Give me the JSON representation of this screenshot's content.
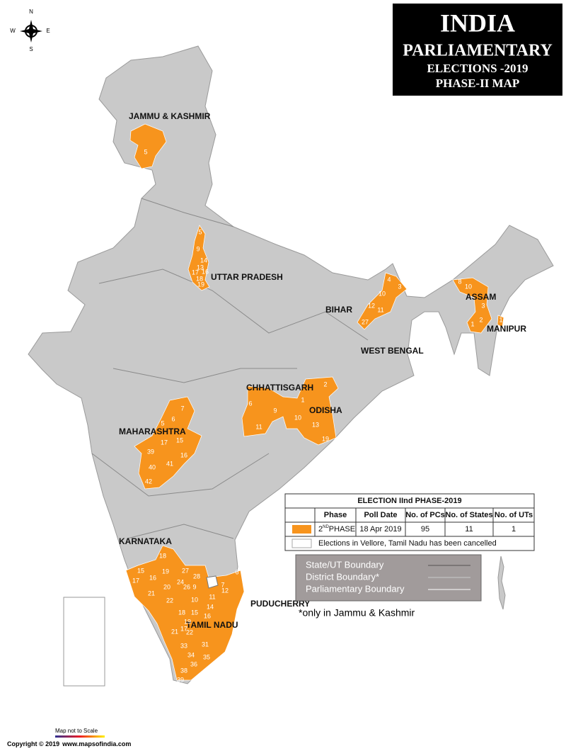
{
  "title": {
    "line1": "INDIA",
    "line2": "PARLIAMENTARY",
    "line3": "ELECTIONS -2019",
    "line4": "PHASE-II MAP"
  },
  "compass": {
    "n": "N",
    "s": "S",
    "e": "E",
    "w": "W"
  },
  "states": [
    "JAMMU & KASHMIR",
    "UTTAR PRADESH",
    "BIHAR",
    "ASSAM",
    "MANIPUR",
    "WEST BENGAL",
    "CHHATTISGARH",
    "ODISHA",
    "MAHARASHTRA",
    "KARNATAKA",
    "PUDUCHERRY",
    "TAMIL NADU"
  ],
  "constituencies": {
    "jammu_kashmir": [
      "5"
    ],
    "uttar_pradesh": [
      "5",
      "9",
      "14",
      "13",
      "17",
      "16",
      "18",
      "19"
    ],
    "bihar": [
      "4",
      "3",
      "10",
      "12",
      "11",
      "27"
    ],
    "assam": [
      "8",
      "10",
      "3",
      "2",
      "1"
    ],
    "manipur": [
      "1"
    ],
    "chhattisgarh": [
      "6",
      "9",
      "11",
      "1"
    ],
    "odisha": [
      "2",
      "10",
      "13",
      "19"
    ],
    "maharashtra": [
      "7",
      "6",
      "5",
      "17",
      "15",
      "39",
      "16",
      "41",
      "40",
      "42"
    ],
    "karnataka": [
      "18",
      "15",
      "19",
      "17",
      "16",
      "20",
      "21",
      "22",
      "27",
      "28",
      "24",
      "26",
      "9"
    ],
    "tamil_nadu": [
      "8",
      "7",
      "6",
      "10",
      "11",
      "12",
      "14",
      "15",
      "16",
      "18",
      "19",
      "17",
      "21",
      "22",
      "33",
      "31",
      "34",
      "35",
      "36",
      "38",
      "39"
    ]
  },
  "table": {
    "title": "ELECTION IInd PHASE-2019",
    "headers": [
      "Phase",
      "Poll Date",
      "No. of PCs",
      "No. of States",
      "No. of UTs"
    ],
    "row": {
      "phase": "2",
      "phase_sup": "ND",
      "phase_word": "PHASE",
      "poll_date": "18 Apr 2019",
      "pcs": 95,
      "states": 11,
      "uts": 1
    },
    "note": "Elections in Vellore, Tamil Nadu has been cancelled"
  },
  "legend": [
    "State/UT Boundary",
    "District Boundary*",
    "Parliamentary Boundary"
  ],
  "footnote": "*only in Jammu & Kashmir",
  "scale_note": "Map not to Scale",
  "copyright": "Copyright © 2019",
  "website": "www.mapsofindia.com"
}
